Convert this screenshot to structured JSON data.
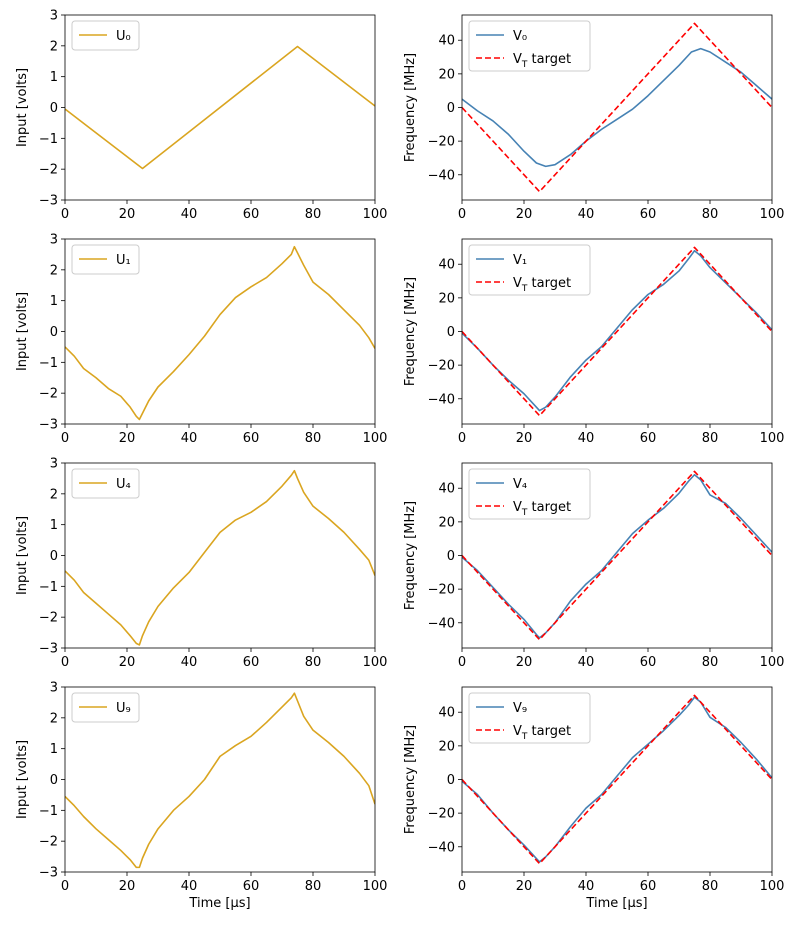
{
  "colors": {
    "input": "#DAA520",
    "freq": "#4682B4",
    "target": "#FF0000"
  },
  "chart_data": [
    {
      "type": "line",
      "id": "u0",
      "ylabel": "Input [volts]",
      "xlabel": "",
      "xlim": [
        0,
        100
      ],
      "ylim": [
        -3,
        3
      ],
      "xticks": [
        "0",
        "20",
        "40",
        "60",
        "80",
        "100"
      ],
      "xtick_values": [
        0,
        20,
        40,
        60,
        80,
        100
      ],
      "yticks": [
        "−3",
        "−2",
        "−1",
        "0",
        "1",
        "2",
        "3"
      ],
      "ytick_values": [
        -3,
        -2,
        -1,
        0,
        1,
        2,
        3
      ],
      "legend": [
        "U₀"
      ],
      "series": [
        {
          "name": "U₀",
          "style": "solid",
          "color": "#DAA520",
          "x": [
            0,
            25,
            75,
            100
          ],
          "y": [
            -0.05,
            -1.98,
            1.98,
            0.05
          ]
        }
      ]
    },
    {
      "type": "line",
      "id": "v0",
      "ylabel": "Frequency [MHz]",
      "xlabel": "",
      "xlim": [
        0,
        100
      ],
      "ylim": [
        -55,
        55
      ],
      "xticks": [
        "0",
        "20",
        "40",
        "60",
        "80",
        "100"
      ],
      "xtick_values": [
        0,
        20,
        40,
        60,
        80,
        100
      ],
      "yticks": [
        "−40",
        "−20",
        "0",
        "20",
        "40"
      ],
      "ytick_values": [
        -40,
        -20,
        0,
        20,
        40
      ],
      "legend": [
        "V₀",
        "V_T target"
      ],
      "series": [
        {
          "name": "V₀",
          "style": "solid",
          "color": "#4682B4",
          "x": [
            0,
            5,
            10,
            15,
            20,
            24,
            27,
            30,
            35,
            40,
            45,
            50,
            55,
            60,
            65,
            70,
            74,
            77,
            80,
            85,
            90,
            95,
            100
          ],
          "y": [
            5,
            -2,
            -8,
            -16,
            -26,
            -33,
            -35,
            -34,
            -28,
            -20,
            -13,
            -7,
            -1,
            7,
            16,
            25,
            33,
            35,
            33,
            27,
            21,
            13,
            5
          ]
        },
        {
          "name": "V_T target",
          "style": "dashed",
          "color": "#FF0000",
          "x": [
            0,
            25,
            75,
            100
          ],
          "y": [
            0,
            -50,
            50,
            0
          ]
        }
      ]
    },
    {
      "type": "line",
      "id": "u1",
      "ylabel": "Input [volts]",
      "xlabel": "",
      "xlim": [
        0,
        100
      ],
      "ylim": [
        -3,
        3
      ],
      "xticks": [
        "0",
        "20",
        "40",
        "60",
        "80",
        "100"
      ],
      "xtick_values": [
        0,
        20,
        40,
        60,
        80,
        100
      ],
      "yticks": [
        "−3",
        "−2",
        "−1",
        "0",
        "1",
        "2",
        "3"
      ],
      "ytick_values": [
        -3,
        -2,
        -1,
        0,
        1,
        2,
        3
      ],
      "legend": [
        "U₁"
      ],
      "series": [
        {
          "name": "U₁",
          "style": "solid",
          "color": "#DAA520",
          "x": [
            0,
            3,
            6,
            10,
            14,
            18,
            21,
            23,
            24,
            25,
            27,
            30,
            35,
            40,
            45,
            50,
            55,
            60,
            65,
            70,
            73,
            74,
            75,
            77,
            80,
            85,
            90,
            95,
            98,
            100
          ],
          "y": [
            -0.5,
            -0.8,
            -1.2,
            -1.5,
            -1.85,
            -2.1,
            -2.45,
            -2.75,
            -2.85,
            -2.65,
            -2.25,
            -1.8,
            -1.3,
            -0.75,
            -0.15,
            0.55,
            1.1,
            1.45,
            1.75,
            2.2,
            2.5,
            2.75,
            2.55,
            2.15,
            1.6,
            1.2,
            0.7,
            0.2,
            -0.2,
            -0.55
          ]
        }
      ]
    },
    {
      "type": "line",
      "id": "v1",
      "ylabel": "Frequency [MHz]",
      "xlabel": "",
      "xlim": [
        0,
        100
      ],
      "ylim": [
        -55,
        55
      ],
      "xticks": [
        "0",
        "20",
        "40",
        "60",
        "80",
        "100"
      ],
      "xtick_values": [
        0,
        20,
        40,
        60,
        80,
        100
      ],
      "yticks": [
        "−40",
        "−20",
        "0",
        "20",
        "40"
      ],
      "ytick_values": [
        -40,
        -20,
        0,
        20,
        40
      ],
      "legend": [
        "V₁",
        "V_T target"
      ],
      "series": [
        {
          "name": "V₁",
          "style": "solid",
          "color": "#4682B4",
          "x": [
            0,
            5,
            10,
            15,
            20,
            24,
            25,
            27,
            30,
            35,
            40,
            45,
            50,
            55,
            60,
            65,
            70,
            73,
            75,
            77,
            80,
            85,
            90,
            95,
            100
          ],
          "y": [
            -1,
            -10,
            -20,
            -29,
            -37,
            -45,
            -47,
            -45,
            -39,
            -27,
            -17,
            -9,
            2,
            13,
            22,
            28,
            36,
            43,
            48,
            45,
            38,
            29,
            20,
            11,
            1
          ]
        },
        {
          "name": "V_T target",
          "style": "dashed",
          "color": "#FF0000",
          "x": [
            0,
            25,
            75,
            100
          ],
          "y": [
            0,
            -50,
            50,
            0
          ]
        }
      ]
    },
    {
      "type": "line",
      "id": "u4",
      "ylabel": "Input [volts]",
      "xlabel": "",
      "xlim": [
        0,
        100
      ],
      "ylim": [
        -3,
        3
      ],
      "xticks": [
        "0",
        "20",
        "40",
        "60",
        "80",
        "100"
      ],
      "xtick_values": [
        0,
        20,
        40,
        60,
        80,
        100
      ],
      "yticks": [
        "−3",
        "−2",
        "−1",
        "0",
        "1",
        "2",
        "3"
      ],
      "ytick_values": [
        -3,
        -2,
        -1,
        0,
        1,
        2,
        3
      ],
      "legend": [
        "U₄"
      ],
      "series": [
        {
          "name": "U₄",
          "style": "solid",
          "color": "#DAA520",
          "x": [
            0,
            3,
            6,
            10,
            14,
            18,
            21,
            23,
            24,
            25,
            27,
            30,
            35,
            40,
            45,
            50,
            55,
            60,
            65,
            70,
            73,
            74,
            75,
            77,
            80,
            85,
            90,
            95,
            98,
            100
          ],
          "y": [
            -0.5,
            -0.8,
            -1.2,
            -1.55,
            -1.9,
            -2.25,
            -2.6,
            -2.85,
            -2.9,
            -2.6,
            -2.15,
            -1.65,
            -1.05,
            -0.55,
            0.1,
            0.75,
            1.15,
            1.4,
            1.75,
            2.25,
            2.6,
            2.75,
            2.5,
            2.05,
            1.6,
            1.2,
            0.75,
            0.2,
            -0.15,
            -0.65
          ]
        }
      ]
    },
    {
      "type": "line",
      "id": "v4",
      "ylabel": "Frequency [MHz]",
      "xlabel": "",
      "xlim": [
        0,
        100
      ],
      "ylim": [
        -55,
        55
      ],
      "xticks": [
        "0",
        "20",
        "40",
        "60",
        "80",
        "100"
      ],
      "xtick_values": [
        0,
        20,
        40,
        60,
        80,
        100
      ],
      "yticks": [
        "−40",
        "−20",
        "0",
        "20",
        "40"
      ],
      "ytick_values": [
        -40,
        -20,
        0,
        20,
        40
      ],
      "legend": [
        "V₄",
        "V_T target"
      ],
      "series": [
        {
          "name": "V₄",
          "style": "solid",
          "color": "#4682B4",
          "x": [
            0,
            5,
            10,
            15,
            20,
            24,
            25,
            27,
            30,
            35,
            40,
            45,
            50,
            55,
            60,
            65,
            70,
            73,
            75,
            77,
            80,
            85,
            90,
            95,
            100
          ],
          "y": [
            -1,
            -9,
            -19,
            -29,
            -38,
            -47,
            -49,
            -46,
            -40,
            -27,
            -17,
            -9,
            2,
            13,
            21,
            28,
            37,
            44,
            48,
            45,
            36,
            31,
            22,
            12,
            2
          ]
        },
        {
          "name": "V_T target",
          "style": "dashed",
          "color": "#FF0000",
          "x": [
            0,
            25,
            75,
            100
          ],
          "y": [
            0,
            -50,
            50,
            0
          ]
        }
      ]
    },
    {
      "type": "line",
      "id": "u9",
      "ylabel": "Input [volts]",
      "xlabel": "Time [μs]",
      "xlim": [
        0,
        100
      ],
      "ylim": [
        -3,
        3
      ],
      "xticks": [
        "0",
        "20",
        "40",
        "60",
        "80",
        "100"
      ],
      "xtick_values": [
        0,
        20,
        40,
        60,
        80,
        100
      ],
      "yticks": [
        "−3",
        "−2",
        "−1",
        "0",
        "1",
        "2",
        "3"
      ],
      "ytick_values": [
        -3,
        -2,
        -1,
        0,
        1,
        2,
        3
      ],
      "legend": [
        "U₉"
      ],
      "series": [
        {
          "name": "U₉",
          "style": "solid",
          "color": "#DAA520",
          "x": [
            0,
            3,
            6,
            10,
            14,
            18,
            21,
            23,
            24,
            25,
            27,
            30,
            35,
            40,
            45,
            50,
            55,
            60,
            65,
            70,
            73,
            74,
            75,
            77,
            80,
            85,
            90,
            95,
            98,
            100
          ],
          "y": [
            -0.55,
            -0.85,
            -1.2,
            -1.6,
            -1.95,
            -2.3,
            -2.6,
            -2.85,
            -2.85,
            -2.55,
            -2.1,
            -1.6,
            -1.0,
            -0.55,
            0.0,
            0.75,
            1.1,
            1.4,
            1.85,
            2.35,
            2.65,
            2.8,
            2.55,
            2.05,
            1.6,
            1.2,
            0.75,
            0.2,
            -0.2,
            -0.8
          ]
        }
      ]
    },
    {
      "type": "line",
      "id": "v9",
      "ylabel": "Frequency [MHz]",
      "xlabel": "Time [μs]",
      "xlim": [
        0,
        100
      ],
      "ylim": [
        -55,
        55
      ],
      "xticks": [
        "0",
        "20",
        "40",
        "60",
        "80",
        "100"
      ],
      "xtick_values": [
        0,
        20,
        40,
        60,
        80,
        100
      ],
      "yticks": [
        "−40",
        "−20",
        "0",
        "20",
        "40"
      ],
      "ytick_values": [
        -40,
        -20,
        0,
        20,
        40
      ],
      "legend": [
        "V₉",
        "V_T target"
      ],
      "series": [
        {
          "name": "V₉",
          "style": "solid",
          "color": "#4682B4",
          "x": [
            0,
            5,
            10,
            15,
            20,
            24,
            25,
            27,
            30,
            35,
            40,
            45,
            50,
            55,
            60,
            65,
            70,
            73,
            75,
            77,
            80,
            85,
            90,
            95,
            100
          ],
          "y": [
            -1,
            -9,
            -20,
            -30,
            -39,
            -47,
            -49,
            -46,
            -40,
            -28,
            -17,
            -9,
            2,
            13,
            21,
            29,
            38,
            44,
            49,
            46,
            37,
            31,
            22,
            12,
            1
          ]
        },
        {
          "name": "V_T target",
          "style": "dashed",
          "color": "#FF0000",
          "x": [
            0,
            25,
            75,
            100
          ],
          "y": [
            0,
            -50,
            50,
            0
          ]
        }
      ]
    }
  ]
}
